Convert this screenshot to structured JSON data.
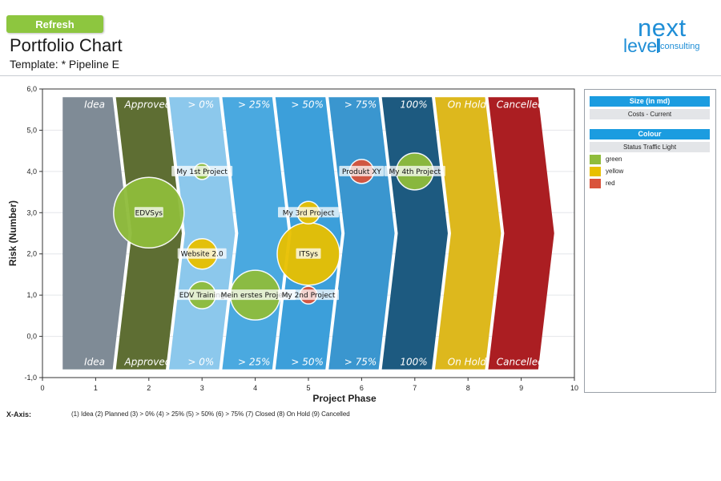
{
  "header": {
    "refresh_label": "Refresh",
    "title": "Portfolio Chart",
    "template_label": "Template: * Pipeline E"
  },
  "logo": {
    "next": "next",
    "level": "level",
    "consulting": "consulting"
  },
  "legend": {
    "size_title": "Size (in md)",
    "size_value": "Costs - Current",
    "colour_title": "Colour",
    "colour_value": "Status Traffic Light",
    "items": [
      {
        "label": "green",
        "color": "#8fbc3b"
      },
      {
        "label": "yellow",
        "color": "#e8c000"
      },
      {
        "label": "red",
        "color": "#d9533b"
      }
    ]
  },
  "x_axis_legend": {
    "title": "X-Axis:",
    "text": "(1) Idea   (2) Planned   (3) > 0%   (4) > 25%   (5) > 50%   (6) > 75%   (7) Closed   (8) On Hold   (9) Cancelled"
  },
  "chart_data": {
    "type": "scatter",
    "xlabel": "Project Phase",
    "ylabel": "Risk (Number)",
    "xlim": [
      0,
      10
    ],
    "ylim": [
      -1,
      6
    ],
    "x_ticks": [
      "0",
      "1",
      "2",
      "3",
      "4",
      "5",
      "6",
      "7",
      "8",
      "9",
      "10"
    ],
    "y_ticks": [
      "-1,0",
      "0,0",
      "1,0",
      "2,0",
      "3,0",
      "4,0",
      "5,0",
      "6,0"
    ],
    "phases": [
      {
        "label": "Idea",
        "color": "#7f8b96"
      },
      {
        "label": "Approved",
        "color": "#5e6e33"
      },
      {
        "label": "> 0%",
        "color": "#8cc8ec"
      },
      {
        "label": "> 25%",
        "color": "#4aa9e0"
      },
      {
        "label": "> 50%",
        "color": "#3c9fda"
      },
      {
        "label": "> 75%",
        "color": "#3a96cf"
      },
      {
        "label": "100%",
        "color": "#1d5a80"
      },
      {
        "label": "On Hold",
        "color": "#ddb81d"
      },
      {
        "label": "Cancelled",
        "color": "#ab1e22"
      }
    ],
    "bubbles": [
      {
        "name": "EDVSys",
        "x": 2,
        "y": 3,
        "size": 44,
        "status": "green"
      },
      {
        "name": "My 1st Project",
        "x": 3,
        "y": 4,
        "size": 10,
        "status": "green"
      },
      {
        "name": "Website 2.0",
        "x": 3,
        "y": 2,
        "size": 19,
        "status": "yellow"
      },
      {
        "name": "EDV Training",
        "x": 3,
        "y": 1,
        "size": 17,
        "status": "green"
      },
      {
        "name": "Mein erstes Projekt",
        "x": 4,
        "y": 1,
        "size": 31,
        "status": "green"
      },
      {
        "name": "My 3rd Project",
        "x": 5,
        "y": 3,
        "size": 14,
        "status": "yellow"
      },
      {
        "name": "ITSys",
        "x": 5,
        "y": 2,
        "size": 39,
        "status": "yellow"
      },
      {
        "name": "My 2nd Project",
        "x": 5,
        "y": 1,
        "size": 11,
        "status": "red"
      },
      {
        "name": "Produkt XY",
        "x": 6,
        "y": 4,
        "size": 15,
        "status": "red"
      },
      {
        "name": "My 4th Project",
        "x": 7,
        "y": 4,
        "size": 23,
        "status": "green"
      }
    ]
  }
}
